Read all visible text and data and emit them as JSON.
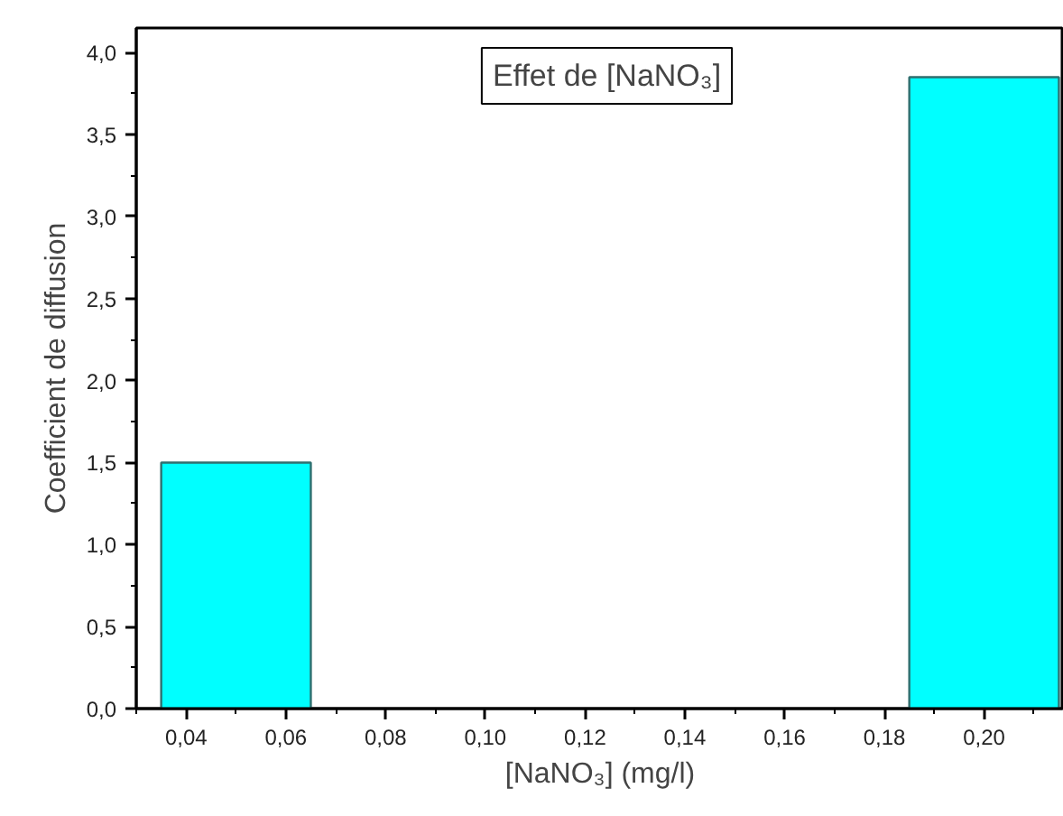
{
  "chart_data": {
    "type": "bar",
    "title": "Effet de [NaNO₃]",
    "xlabel": "[NaNO₃] (mg/l)",
    "ylabel": "Coefficient de diffusion",
    "x": [
      0.05,
      0.2
    ],
    "values": [
      1.5,
      3.85
    ],
    "color": "#00ffff",
    "xlim": [
      0.03,
      0.216
    ],
    "ylim": [
      0,
      4.15
    ],
    "xticks": [
      {
        "value": 0.04,
        "label": "0,04"
      },
      {
        "value": 0.06,
        "label": "0,06"
      },
      {
        "value": 0.08,
        "label": "0,08"
      },
      {
        "value": 0.1,
        "label": "0,10"
      },
      {
        "value": 0.12,
        "label": "0,12"
      },
      {
        "value": 0.14,
        "label": "0,14"
      },
      {
        "value": 0.16,
        "label": "0,16"
      },
      {
        "value": 0.18,
        "label": "0,18"
      },
      {
        "value": 0.2,
        "label": "0,20"
      }
    ],
    "yticks": [
      {
        "value": 0,
        "label": "0,0"
      },
      {
        "value": 0.5,
        "label": "0,5"
      },
      {
        "value": 1,
        "label": "1,0"
      },
      {
        "value": 1.5,
        "label": "1,5"
      },
      {
        "value": 2,
        "label": "2,0"
      },
      {
        "value": 2.5,
        "label": "2,5"
      },
      {
        "value": 3,
        "label": "3,0"
      },
      {
        "value": 3.5,
        "label": "3,5"
      },
      {
        "value": 4,
        "label": "4,0"
      }
    ],
    "grid": false
  }
}
